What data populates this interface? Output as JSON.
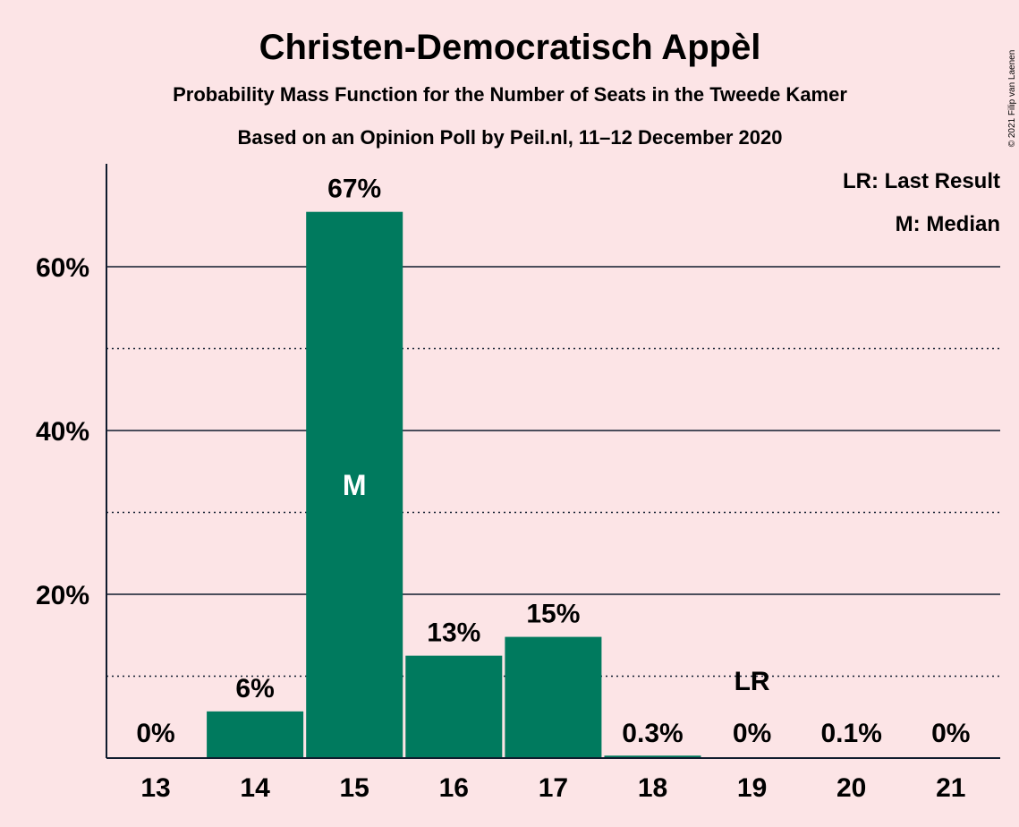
{
  "copyright": "© 2021 Filip van Laenen",
  "chart_data": {
    "type": "bar",
    "title": "Christen-Democratisch Appèl",
    "subtitle": "Probability Mass Function for the Number of Seats in the Tweede Kamer",
    "subtitle2": "Based on an Opinion Poll by Peil.nl, 11–12 December 2020",
    "categories": [
      "13",
      "14",
      "15",
      "16",
      "17",
      "18",
      "19",
      "20",
      "21"
    ],
    "values": [
      0,
      5.7,
      66.7,
      12.5,
      14.8,
      0.3,
      0,
      0.1,
      0
    ],
    "value_labels": [
      "0%",
      "6%",
      "67%",
      "13%",
      "15%",
      "0.3%",
      "0%",
      "0.1%",
      "0%"
    ],
    "ylim": [
      0,
      72
    ],
    "yticks": [
      20,
      40,
      60
    ],
    "ytick_labels": [
      "20%",
      "40%",
      "60%"
    ],
    "minor_gridlines": [
      10,
      30,
      50
    ],
    "median_index": 2,
    "median_marker": "M",
    "last_result_index": 6,
    "last_result_marker": "LR",
    "legend": [
      "LR: Last Result",
      "M: Median"
    ],
    "legend_position": "top-right",
    "bar_color": "#007a5e"
  }
}
